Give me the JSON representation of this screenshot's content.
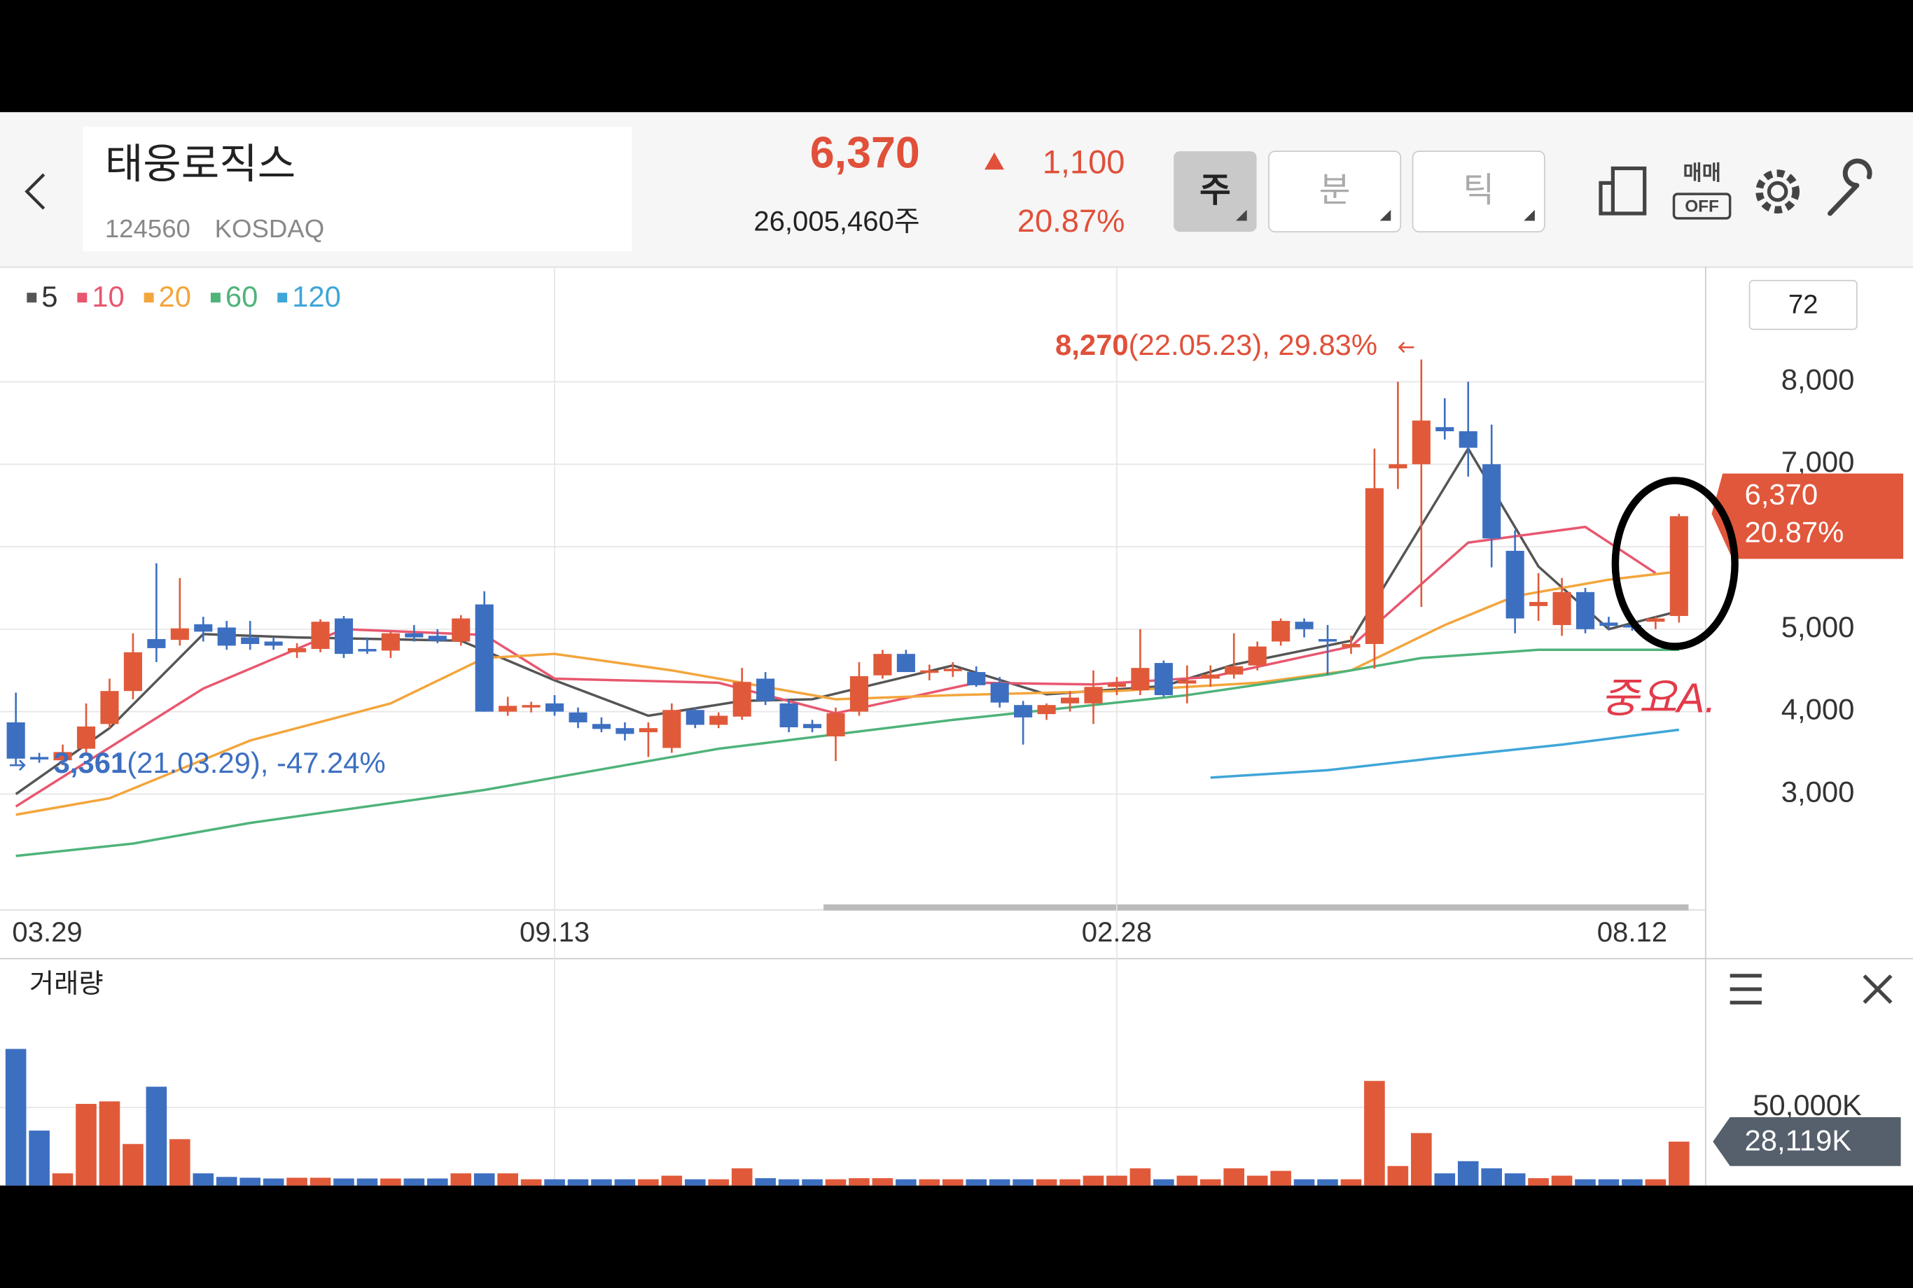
{
  "header": {
    "name": "태웅로직스",
    "code": "124560",
    "market": "KOSDAQ",
    "price": "6,370",
    "change": "1,100",
    "volume": "26,005,460주",
    "change_rate": "20.87%",
    "tabs": [
      "주",
      "분",
      "틱"
    ],
    "trade_toggle": [
      "매매",
      "OFF"
    ]
  },
  "chart_data": [
    {
      "type": "candlestick",
      "period_count": "72",
      "legend": [
        "5",
        "10",
        "20",
        "60",
        "120"
      ],
      "categories": [
        "03.29",
        null,
        null,
        null,
        null,
        null,
        null,
        null,
        null,
        null,
        null,
        null,
        null,
        null,
        null,
        null,
        null,
        null,
        null,
        null,
        null,
        null,
        null,
        "09.13",
        null,
        null,
        null,
        null,
        null,
        null,
        null,
        null,
        null,
        null,
        null,
        null,
        null,
        null,
        null,
        null,
        null,
        null,
        null,
        null,
        null,
        null,
        null,
        "02.28",
        null,
        null,
        null,
        null,
        null,
        null,
        null,
        null,
        null,
        null,
        null,
        null,
        null,
        null,
        null,
        null,
        null,
        null,
        null,
        null,
        null,
        "08.12",
        null,
        null
      ],
      "open": [
        3870,
        3450,
        3410,
        3550,
        3850,
        4250,
        4880,
        4870,
        5060,
        5020,
        4900,
        4850,
        4720,
        4760,
        5130,
        4760,
        4740,
        4950,
        4920,
        4850,
        5300,
        4000,
        4050,
        4100,
        3990,
        3850,
        3800,
        3750,
        3560,
        4020,
        3840,
        3940,
        4400,
        4100,
        3850,
        3700,
        4000,
        4440,
        4700,
        4470,
        4500,
        4480,
        4350,
        4080,
        3970,
        4100,
        4100,
        4300,
        4260,
        4590,
        4340,
        4400,
        4450,
        4560,
        4850,
        5090,
        4880,
        4780,
        4820,
        6950,
        7000,
        7450,
        7400,
        7000,
        5950,
        5280,
        5050,
        5450,
        5080,
        5050,
        5090,
        5160
      ],
      "high": [
        4230,
        3500,
        3600,
        4100,
        4400,
        4950,
        5800,
        5620,
        5150,
        5100,
        5100,
        4900,
        4830,
        5120,
        5160,
        4900,
        4980,
        5050,
        5000,
        5170,
        5460,
        4180,
        4120,
        4200,
        4050,
        3930,
        3870,
        3870,
        4100,
        4050,
        3990,
        4530,
        4480,
        4150,
        3900,
        4050,
        4600,
        4750,
        4750,
        4570,
        4600,
        4550,
        4420,
        4130,
        4100,
        4250,
        4500,
        4420,
        5000,
        4620,
        4560,
        4560,
        4950,
        4850,
        5130,
        5130,
        5050,
        4920,
        7190,
        8000,
        8270,
        7800,
        8000,
        7480,
        6200,
        5680,
        5620,
        5500,
        5150,
        5100,
        5150,
        6400
      ],
      "low": [
        3361,
        3380,
        3350,
        3500,
        3800,
        4150,
        4600,
        4800,
        4850,
        4750,
        4750,
        4750,
        4650,
        4720,
        4650,
        4700,
        4650,
        4850,
        4830,
        4800,
        4000,
        3950,
        3990,
        3950,
        3800,
        3750,
        3650,
        3450,
        3500,
        3800,
        3800,
        3900,
        4080,
        3750,
        3750,
        3400,
        3950,
        4400,
        4480,
        4380,
        4420,
        4300,
        4050,
        3600,
        3900,
        4000,
        3850,
        4200,
        4200,
        4180,
        4100,
        4300,
        4400,
        4500,
        4800,
        4900,
        4450,
        4700,
        4520,
        6700,
        5270,
        7300,
        6850,
        5750,
        4950,
        5100,
        4920,
        4950,
        5000,
        4980,
        5000,
        5080
      ],
      "close": [
        3430,
        3420,
        3510,
        3820,
        4250,
        4720,
        4770,
        5010,
        4970,
        4800,
        4820,
        4800,
        4770,
        5090,
        4700,
        4730,
        4950,
        4900,
        4860,
        5130,
        4000,
        4070,
        4080,
        4000,
        3870,
        3790,
        3730,
        3800,
        4020,
        3840,
        3950,
        4360,
        4130,
        3810,
        3800,
        3980,
        4430,
        4700,
        4480,
        4500,
        4520,
        4320,
        4110,
        3930,
        4080,
        4170,
        4300,
        4340,
        4530,
        4200,
        4380,
        4450,
        4550,
        4790,
        5100,
        5000,
        4850,
        4820,
        6710,
        7000,
        7530,
        7400,
        7200,
        6100,
        5130,
        5330,
        5450,
        5000,
        5040,
        5020,
        5130,
        6370
      ],
      "up_color": "#e05a3a",
      "down_color": "#3d6fc1",
      "lines": [
        {
          "name": "5",
          "color": "#555555",
          "x": [
            0,
            4,
            8,
            12,
            19,
            23,
            27,
            31,
            34,
            40,
            44,
            49,
            52,
            57,
            62,
            65,
            68,
            71
          ],
          "values": [
            3000,
            3800,
            4940,
            4900,
            4860,
            4380,
            3950,
            4130,
            4150,
            4560,
            4210,
            4310,
            4570,
            4860,
            7190,
            5760,
            5000,
            5220
          ]
        },
        {
          "name": "10",
          "color": "#e8576f",
          "x": [
            0,
            8,
            14,
            20,
            23,
            30,
            35,
            41,
            46,
            51,
            57,
            62,
            67,
            70
          ],
          "values": [
            2850,
            4280,
            5000,
            4930,
            4400,
            4350,
            3980,
            4350,
            4330,
            4420,
            4790,
            6050,
            6240,
            5680
          ]
        },
        {
          "name": "20",
          "color": "#f3a53c",
          "x": [
            0,
            4,
            10,
            16,
            20,
            23,
            28,
            35,
            40,
            47,
            53,
            57,
            61,
            64,
            68,
            71
          ],
          "values": [
            2750,
            2950,
            3650,
            4100,
            4650,
            4700,
            4500,
            4150,
            4200,
            4250,
            4350,
            4500,
            5050,
            5400,
            5600,
            5700
          ]
        },
        {
          "name": "60",
          "color": "#4fb37a",
          "x": [
            0,
            5,
            10,
            20,
            30,
            40,
            50,
            56,
            60,
            65,
            71
          ],
          "values": [
            2250,
            2400,
            2650,
            3050,
            3550,
            3900,
            4200,
            4450,
            4650,
            4750,
            4750
          ]
        },
        {
          "name": "120",
          "color": "#3fa6d8",
          "x": [
            51,
            56,
            61,
            66,
            71
          ],
          "values": [
            3200,
            3290,
            3450,
            3600,
            3780
          ]
        }
      ],
      "ylim": [
        1655,
        9346
      ],
      "yticks": [
        {
          "value": 8000,
          "label": "8,000"
        },
        {
          "value": 7000,
          "label": "7,000"
        },
        {
          "value": 6000,
          "label": ""
        },
        {
          "value": 5000,
          "label": "5,000"
        },
        {
          "value": 4000,
          "label": "4,000"
        },
        {
          "value": 3000,
          "label": "3,000"
        }
      ],
      "grid": true,
      "max_annotation": {
        "value": "8,270",
        "detail": "(22.05.23), 29.83%"
      },
      "min_annotation": {
        "value": "3,361",
        "detail": "(21.03.29), -47.24%"
      },
      "price_tag": [
        "6,370",
        "20.87%"
      ],
      "handwritten_note": "중요A."
    },
    {
      "type": "bar",
      "title": "거래량",
      "values": [
        87500,
        35200,
        7800,
        52300,
        53900,
        26600,
        63300,
        29700,
        7800,
        5500,
        5000,
        4500,
        5000,
        5000,
        4500,
        4500,
        4500,
        4500,
        4500,
        7800,
        7800,
        7800,
        4000,
        4000,
        4000,
        4000,
        4000,
        4000,
        6300,
        4000,
        4000,
        11000,
        4700,
        4000,
        4000,
        4000,
        4700,
        4700,
        4000,
        4000,
        4000,
        4000,
        4000,
        4000,
        4000,
        4000,
        6300,
        6300,
        11000,
        4000,
        6300,
        4000,
        11000,
        6300,
        9400,
        4000,
        4000,
        4000,
        67000,
        12500,
        33600,
        7800,
        15600,
        11000,
        7800,
        4700,
        6300,
        4000,
        4000,
        4000,
        4000,
        28119
      ],
      "ylim": [
        0,
        134375
      ],
      "yticks": [
        {
          "value": 50000,
          "label": "50,000K"
        }
      ],
      "last_label": "28,119K"
    }
  ]
}
